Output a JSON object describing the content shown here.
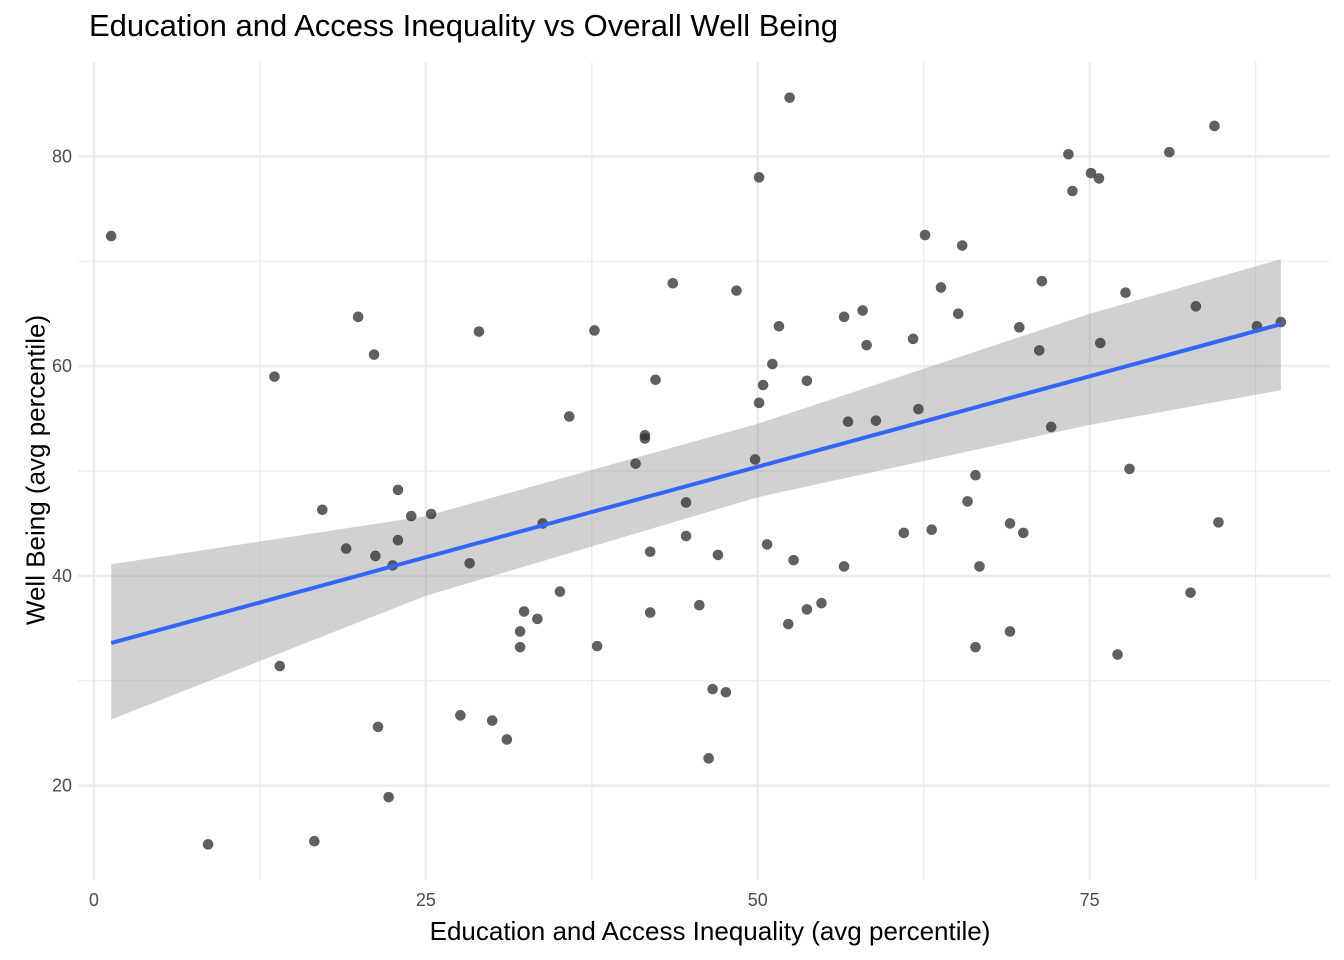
{
  "chart_data": {
    "type": "scatter",
    "title": "Education and Access Inequality vs Overall Well Being",
    "xlabel": "Education and Access Inequality (avg percentile)",
    "ylabel": "Well Being (avg percentile)",
    "xlim": [
      -1.2,
      93.1
    ],
    "ylim": [
      11.0,
      89.0
    ],
    "x_ticks": [
      0,
      25,
      50,
      75
    ],
    "y_ticks": [
      20,
      40,
      60,
      80
    ],
    "x_minor_ticks": [
      12.5,
      37.5,
      62.5,
      87.5
    ],
    "y_minor_ticks": [
      30,
      50,
      70
    ],
    "grid": true,
    "legend": "none",
    "colors": {
      "points": "#333333",
      "fit_line": "#3366FF",
      "ribbon": "#999999",
      "grid": "#EBEBEB"
    },
    "fit": {
      "method": "linear regression with confidence band",
      "line": [
        {
          "x": 1.3,
          "y": 33.6
        },
        {
          "x": 89.4,
          "y": 64.0
        }
      ],
      "band": [
        {
          "x": 1.3,
          "lower": 26.3,
          "upper": 41.1
        },
        {
          "x": 25.0,
          "lower": 38.1,
          "upper": 45.7
        },
        {
          "x": 50.0,
          "lower": 47.5,
          "upper": 54.5
        },
        {
          "x": 75.0,
          "lower": 54.4,
          "upper": 65.0
        },
        {
          "x": 89.4,
          "lower": 57.7,
          "upper": 70.2
        }
      ]
    },
    "points": [
      {
        "x": 1.3,
        "y": 72.4
      },
      {
        "x": 8.6,
        "y": 14.4
      },
      {
        "x": 13.6,
        "y": 59.0
      },
      {
        "x": 14.0,
        "y": 31.4
      },
      {
        "x": 16.6,
        "y": 14.7
      },
      {
        "x": 17.2,
        "y": 46.3
      },
      {
        "x": 19.0,
        "y": 42.6
      },
      {
        "x": 19.9,
        "y": 64.7
      },
      {
        "x": 21.1,
        "y": 61.1
      },
      {
        "x": 21.2,
        "y": 41.9
      },
      {
        "x": 21.4,
        "y": 25.6
      },
      {
        "x": 22.2,
        "y": 18.9
      },
      {
        "x": 22.5,
        "y": 41.0
      },
      {
        "x": 22.9,
        "y": 48.2
      },
      {
        "x": 22.9,
        "y": 43.4
      },
      {
        "x": 23.9,
        "y": 45.7
      },
      {
        "x": 25.4,
        "y": 45.9
      },
      {
        "x": 27.6,
        "y": 26.7
      },
      {
        "x": 28.3,
        "y": 41.2
      },
      {
        "x": 29.0,
        "y": 63.3
      },
      {
        "x": 30.0,
        "y": 26.2
      },
      {
        "x": 31.1,
        "y": 24.4
      },
      {
        "x": 32.1,
        "y": 34.7
      },
      {
        "x": 32.1,
        "y": 33.2
      },
      {
        "x": 32.4,
        "y": 36.6
      },
      {
        "x": 33.4,
        "y": 35.9
      },
      {
        "x": 33.8,
        "y": 45.0
      },
      {
        "x": 35.1,
        "y": 38.5
      },
      {
        "x": 35.8,
        "y": 55.2
      },
      {
        "x": 37.7,
        "y": 63.4
      },
      {
        "x": 37.9,
        "y": 33.3
      },
      {
        "x": 40.8,
        "y": 50.7
      },
      {
        "x": 41.5,
        "y": 53.4
      },
      {
        "x": 41.5,
        "y": 53.1
      },
      {
        "x": 41.9,
        "y": 42.3
      },
      {
        "x": 41.9,
        "y": 36.5
      },
      {
        "x": 42.3,
        "y": 58.7
      },
      {
        "x": 43.6,
        "y": 67.9
      },
      {
        "x": 44.6,
        "y": 47.0
      },
      {
        "x": 44.6,
        "y": 43.8
      },
      {
        "x": 45.6,
        "y": 37.2
      },
      {
        "x": 46.3,
        "y": 22.6
      },
      {
        "x": 46.6,
        "y": 29.2
      },
      {
        "x": 47.0,
        "y": 42.0
      },
      {
        "x": 47.6,
        "y": 28.9
      },
      {
        "x": 48.4,
        "y": 67.2
      },
      {
        "x": 49.8,
        "y": 51.1
      },
      {
        "x": 50.1,
        "y": 78.0
      },
      {
        "x": 50.1,
        "y": 56.5
      },
      {
        "x": 50.4,
        "y": 58.2
      },
      {
        "x": 50.7,
        "y": 43.0
      },
      {
        "x": 51.1,
        "y": 60.2
      },
      {
        "x": 51.6,
        "y": 63.8
      },
      {
        "x": 52.3,
        "y": 35.4
      },
      {
        "x": 52.4,
        "y": 85.6
      },
      {
        "x": 52.7,
        "y": 41.5
      },
      {
        "x": 53.7,
        "y": 58.6
      },
      {
        "x": 53.7,
        "y": 36.8
      },
      {
        "x": 54.8,
        "y": 37.4
      },
      {
        "x": 56.5,
        "y": 64.7
      },
      {
        "x": 56.5,
        "y": 40.9
      },
      {
        "x": 56.8,
        "y": 54.7
      },
      {
        "x": 57.9,
        "y": 65.3
      },
      {
        "x": 58.2,
        "y": 62.0
      },
      {
        "x": 58.9,
        "y": 54.8
      },
      {
        "x": 61.0,
        "y": 44.1
      },
      {
        "x": 61.7,
        "y": 62.6
      },
      {
        "x": 62.1,
        "y": 55.9
      },
      {
        "x": 62.6,
        "y": 72.5
      },
      {
        "x": 63.1,
        "y": 44.4
      },
      {
        "x": 63.8,
        "y": 67.5
      },
      {
        "x": 65.1,
        "y": 65.0
      },
      {
        "x": 65.4,
        "y": 71.5
      },
      {
        "x": 65.8,
        "y": 47.1
      },
      {
        "x": 66.4,
        "y": 49.6
      },
      {
        "x": 66.4,
        "y": 33.2
      },
      {
        "x": 66.7,
        "y": 40.9
      },
      {
        "x": 69.0,
        "y": 45.0
      },
      {
        "x": 69.0,
        "y": 34.7
      },
      {
        "x": 69.7,
        "y": 63.7
      },
      {
        "x": 70.0,
        "y": 44.1
      },
      {
        "x": 71.2,
        "y": 61.5
      },
      {
        "x": 71.4,
        "y": 68.1
      },
      {
        "x": 72.1,
        "y": 54.2
      },
      {
        "x": 73.4,
        "y": 80.2
      },
      {
        "x": 73.7,
        "y": 76.7
      },
      {
        "x": 75.1,
        "y": 78.4
      },
      {
        "x": 75.7,
        "y": 77.9
      },
      {
        "x": 75.8,
        "y": 62.2
      },
      {
        "x": 77.1,
        "y": 32.5
      },
      {
        "x": 77.7,
        "y": 67.0
      },
      {
        "x": 78.0,
        "y": 50.2
      },
      {
        "x": 81.0,
        "y": 80.4
      },
      {
        "x": 82.6,
        "y": 38.4
      },
      {
        "x": 83.0,
        "y": 65.7
      },
      {
        "x": 84.4,
        "y": 82.9
      },
      {
        "x": 84.7,
        "y": 45.1
      },
      {
        "x": 87.6,
        "y": 63.8
      },
      {
        "x": 89.4,
        "y": 64.2
      }
    ]
  }
}
